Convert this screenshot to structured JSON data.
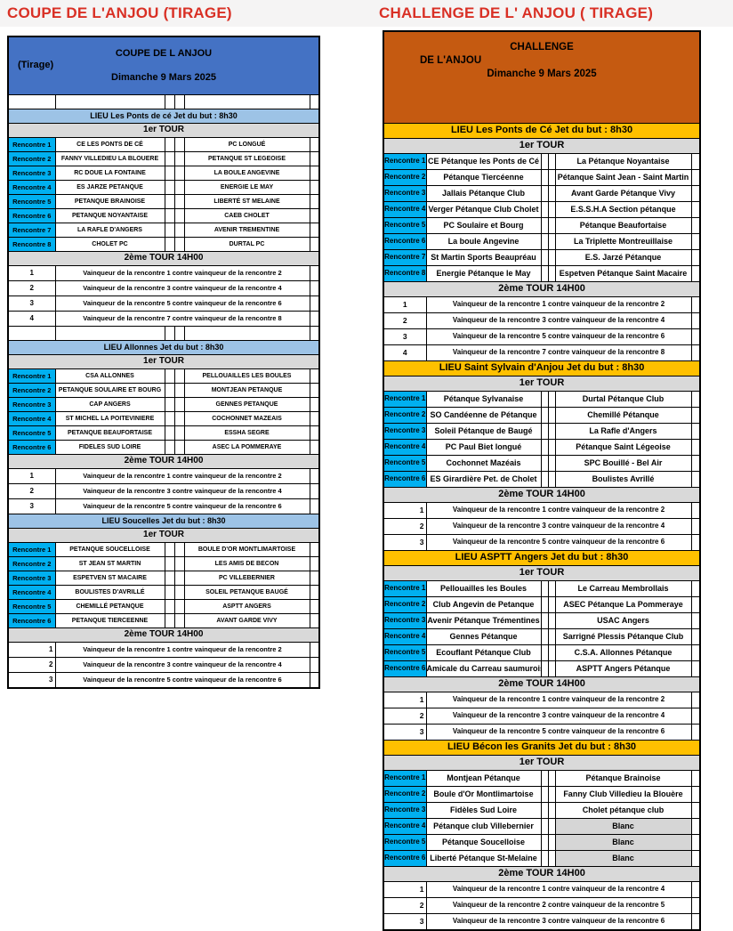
{
  "colors": {
    "title-red": "#d93025",
    "title-bg": "#f5f4f4",
    "blue-header": "#4472c4",
    "orange-header": "#c55a11",
    "lieu-blue": "#9dc3e6",
    "lieu-gold": "#ffc000",
    "tour-gray": "#d9d9d9",
    "rencontre-cyan": "#00b0f0",
    "blanc-gray": "#d6d6d6",
    "border-black": "#000000"
  },
  "left_table": {
    "page_title": "COUPE DE L'ANJOU (TIRAGE)",
    "header_lines": [
      "COUPE DE L ANJOU",
      "(Tirage)",
      "Dimanche 9 Mars 2025"
    ],
    "tour1_label": "1er TOUR",
    "tour2_label": "2ème TOUR 14H00",
    "sections": [
      {
        "lieu": "LIEU Les Ponts de cé Jet du but : 8h30",
        "empty_row_before": true,
        "empty_row_after": true,
        "num_align": "center",
        "matches": [
          {
            "label": "Rencontre 1",
            "team1": "CE LES PONTS DE CÉ",
            "team2": "PC LONGUÉ"
          },
          {
            "label": "Rencontre 2",
            "team1": "FANNY VILLEDIEU LA BLOUERE",
            "team2": "PETANQUE ST LEGEOISE"
          },
          {
            "label": "Rencontre 3",
            "team1": "RC DOUE LA FONTAINE",
            "team2": "LA BOULE ANGEVINE"
          },
          {
            "label": "Rencontre 4",
            "team1": "ES JARZE PETANQUE",
            "team2": "ENERGIE LE MAY"
          },
          {
            "label": "Rencontre 5",
            "team1": "PETANQUE BRAINOISE",
            "team2": "LIBERTÉ ST MELAINE"
          },
          {
            "label": "Rencontre 6",
            "team1": "PETANQUE NOYANTAISE",
            "team2": "CAEB CHOLET"
          },
          {
            "label": "Rencontre 7",
            "team1": "LA RAFLE D'ANGERS",
            "team2": "AVENIR TREMENTINE"
          },
          {
            "label": "Rencontre 8",
            "team1": "CHOLET PC",
            "team2": "DURTAL PC"
          }
        ],
        "second_round": [
          {
            "num": "1",
            "text": "Vainqueur de la rencontre 1 contre vainqueur de la rencontre 2"
          },
          {
            "num": "2",
            "text": "Vainqueur de la rencontre 3 contre vainqueur de la rencontre 4"
          },
          {
            "num": "3",
            "text": "Vainqueur de la rencontre 5 contre vainqueur de la rencontre 6"
          },
          {
            "num": "4",
            "text": "Vainqueur de la rencontre 7 contre vainqueur de la rencontre 8"
          }
        ]
      },
      {
        "lieu": "LIEU Allonnes Jet du but : 8h30",
        "empty_row_before": false,
        "empty_row_after": false,
        "num_align": "center",
        "matches": [
          {
            "label": "Rencontre 1",
            "team1": "CSA ALLONNES",
            "team2": "PELLOUAILLES LES BOULES"
          },
          {
            "label": "Rencontre 2",
            "team1": "PETANQUE SOULAIRE ET BOURG",
            "team2": "MONTJEAN PETANQUE"
          },
          {
            "label": "Rencontre 3",
            "team1": "CAP ANGERS",
            "team2": "GENNES PETANQUE"
          },
          {
            "label": "Rencontre 4",
            "team1": "ST MICHEL LA POITEVINIERE",
            "team2": "COCHONNET MAZEAIS"
          },
          {
            "label": "Rencontre 5",
            "team1": "PETANQUE BEAUFORTAISE",
            "team2": "ESSHA SEGRE"
          },
          {
            "label": "Rencontre 6",
            "team1": "FIDELES SUD LOIRE",
            "team2": "ASEC LA POMMERAYE"
          }
        ],
        "second_round": [
          {
            "num": "1",
            "text": "Vainqueur de la rencontre 1 contre vainqueur de la rencontre 2"
          },
          {
            "num": "2",
            "text": "Vainqueur de la rencontre 3 contre vainqueur de la rencontre 4"
          },
          {
            "num": "3",
            "text": "Vainqueur de la rencontre 5 contre vainqueur de la rencontre 6"
          }
        ]
      },
      {
        "lieu": "LIEU Soucelles Jet du but : 8h30",
        "empty_row_before": false,
        "empty_row_after": false,
        "num_align": "right",
        "matches": [
          {
            "label": "Rencontre 1",
            "team1": "PETANQUE SOUCELLOISE",
            "team2": "BOULE D'OR MONTLIMARTOISE"
          },
          {
            "label": "Rencontre 2",
            "team1": "ST JEAN ST MARTIN",
            "team2": "LES AMIS DE BECON"
          },
          {
            "label": "Rencontre 3",
            "team1": "ESPETVEN ST MACAIRE",
            "team2": "PC VILLEBERNIER"
          },
          {
            "label": "Rencontre 4",
            "team1": "BOULISTES D'AVRILLÉ",
            "team2": "SOLEIL PETANQUE BAUGÉ"
          },
          {
            "label": "Rencontre 5",
            "team1": "CHEMILLÉ PETANQUE",
            "team2": "ASPTT ANGERS"
          },
          {
            "label": "Rencontre 6",
            "team1": "PETANQUE TIERCEENNE",
            "team2": "AVANT GARDE VIVY"
          }
        ],
        "second_round": [
          {
            "num": "1",
            "text": "Vainqueur de la rencontre 1 contre vainqueur de la rencontre 2"
          },
          {
            "num": "2",
            "text": "Vainqueur de la rencontre 3 contre vainqueur de la rencontre 4"
          },
          {
            "num": "3",
            "text": "Vainqueur de la rencontre 5 contre vainqueur de la rencontre 6"
          }
        ]
      }
    ]
  },
  "right_table": {
    "page_title": "CHALLENGE DE L' ANJOU ( TIRAGE)",
    "header_lines": [
      "CHALLENGE",
      "DE L'ANJOU",
      "Dimanche 9 Mars 2025"
    ],
    "tour1_label": "1er TOUR",
    "tour2_label": "2ème TOUR 14H00",
    "sections": [
      {
        "lieu": "LIEU Les Ponts de Cé Jet du but : 8h30",
        "empty_row_before": false,
        "empty_row_after": false,
        "num_align": "center",
        "matches": [
          {
            "label": "Rencontre 1",
            "team1": "CE Pétanque les Ponts de Cé",
            "team2": "La Pétanque Noyantaise"
          },
          {
            "label": "Rencontre 2",
            "team1": "Pétanque Tiercéenne",
            "team2": "Pétanque Saint Jean - Saint Martin"
          },
          {
            "label": "Rencontre 3",
            "team1": "Jallais Pétanque Club",
            "team2": "Avant Garde Pétanque Vivy"
          },
          {
            "label": "Rencontre 4",
            "team1": "Verger Pétanque Club Cholet",
            "team2": "E.S.S.H.A Section pétanque"
          },
          {
            "label": "Rencontre 5",
            "team1": "PC Soulaire et Bourg",
            "team2": "Pétanque Beaufortaise"
          },
          {
            "label": "Rencontre 6",
            "team1": "La boule Angevine",
            "team2": "La Triplette Montreuillaise"
          },
          {
            "label": "Rencontre 7",
            "team1": "St Martin Sports Beaupréau",
            "team2": "E.S. Jarzé Pétanque"
          },
          {
            "label": "Rencontre 8",
            "team1": "Energie Pétanque le May",
            "team2": "Espetven Pétanque Saint Macaire"
          }
        ],
        "second_round": [
          {
            "num": "1",
            "text": "Vainqueur de la rencontre 1 contre vainqueur de la rencontre 2"
          },
          {
            "num": "2",
            "text": "Vainqueur de la rencontre 3 contre vainqueur de la rencontre 4"
          },
          {
            "num": "3",
            "text": "Vainqueur de la rencontre 5 contre vainqueur de la rencontre 6"
          },
          {
            "num": "4",
            "text": "Vainqueur de la rencontre 7 contre vainqueur de la rencontre 8"
          }
        ]
      },
      {
        "lieu": "LIEU Saint Sylvain d'Anjou  Jet du but : 8h30",
        "empty_row_before": false,
        "empty_row_after": false,
        "num_align": "right",
        "matches": [
          {
            "label": "Rencontre 1",
            "team1": "Pétanque Sylvanaise",
            "team2": "Durtal Pétanque Club"
          },
          {
            "label": "Rencontre 2",
            "team1": "SO Candéenne de Pétanque",
            "team2": "Chemillé Pétanque"
          },
          {
            "label": "Rencontre 3",
            "team1": "Soleil Pétanque de Baugé",
            "team2": "La Rafle d'Angers"
          },
          {
            "label": "Rencontre 4",
            "team1": "PC Paul Biet longué",
            "team2": "Pétanque Saint Légeoise"
          },
          {
            "label": "Rencontre 5",
            "team1": "Cochonnet Mazéais",
            "team2": "SPC Bouillé - Bel Air"
          },
          {
            "label": "Rencontre 6",
            "team1": "ES Girardière Pet. de Cholet",
            "team2": "Boulistes Avrillé"
          }
        ],
        "second_round": [
          {
            "num": "1",
            "text": "Vainqueur de la rencontre 1 contre vainqueur de la rencontre 2"
          },
          {
            "num": "2",
            "text": "Vainqueur de la rencontre 3 contre vainqueur de la rencontre 4"
          },
          {
            "num": "3",
            "text": "Vainqueur de la rencontre 5 contre vainqueur de la rencontre 6"
          }
        ]
      },
      {
        "lieu": "LIEU  ASPTT Angers Jet du but : 8h30",
        "empty_row_before": false,
        "empty_row_after": false,
        "num_align": "right",
        "matches": [
          {
            "label": "Rencontre 1",
            "team1": "Pellouailles les Boules",
            "team2": "Le Carreau Membrollais"
          },
          {
            "label": "Rencontre 2",
            "team1": "Club Angevin de Petanque",
            "team2": "ASEC Pétanque La Pommeraye"
          },
          {
            "label": "Rencontre 3",
            "team1": "Avenir Pétanque Trémentines",
            "team2": "USAC Angers"
          },
          {
            "label": "Rencontre 4",
            "team1": "Gennes Pétanque",
            "team2": "Sarrigné Plessis Pétanque Club"
          },
          {
            "label": "Rencontre 5",
            "team1": "Ecouflant Pétanque Club",
            "team2": "C.S.A. Allonnes Pétanque"
          },
          {
            "label": "Rencontre 6",
            "team1": "Amicale du Carreau saumurois",
            "team2": "ASPTT Angers Pétanque"
          }
        ],
        "second_round": [
          {
            "num": "1",
            "text": "Vainqueur de la rencontre 1 contre vainqueur de la rencontre 2"
          },
          {
            "num": "2",
            "text": "Vainqueur de la rencontre 3 contre vainqueur de la rencontre 4"
          },
          {
            "num": "3",
            "text": "Vainqueur de la rencontre 5 contre vainqueur de la rencontre 6"
          }
        ]
      },
      {
        "lieu": "LIEU Bécon les Granits Jet du but : 8h30",
        "empty_row_before": false,
        "empty_row_after": false,
        "num_align": "right",
        "matches": [
          {
            "label": "Rencontre 1",
            "team1": "Montjean Pétanque",
            "team2": "Pétanque Brainoise",
            "team2_blanc": false
          },
          {
            "label": "Rencontre 2",
            "team1": "Boule d'Or Montlimartoise",
            "team2": "Fanny Club Villedieu la Blouère",
            "team2_blanc": false
          },
          {
            "label": "Rencontre 3",
            "team1": "Fidèles Sud Loire",
            "team2": "Cholet pétanque club",
            "team2_blanc": false
          },
          {
            "label": "Rencontre 4",
            "team1": "Pétanque club Villebernier",
            "team2": "Blanc",
            "team2_blanc": true
          },
          {
            "label": "Rencontre 5",
            "team1": "Pétanque Soucelloise",
            "team2": "Blanc",
            "team2_blanc": true
          },
          {
            "label": "Rencontre 6",
            "team1": "Liberté Pétanque St-Melaine",
            "team2": "Blanc",
            "team2_blanc": true
          }
        ],
        "second_round": [
          {
            "num": "1",
            "text": "Vainqueur de la rencontre 1 contre vainqueur de la rencontre 4"
          },
          {
            "num": "2",
            "text": "Vainqueur de la rencontre 2 contre vainqueur de la rencontre 5"
          },
          {
            "num": "3",
            "text": "Vainqueur de la rencontre 3 contre vainqueur de la rencontre 6"
          }
        ]
      }
    ]
  }
}
